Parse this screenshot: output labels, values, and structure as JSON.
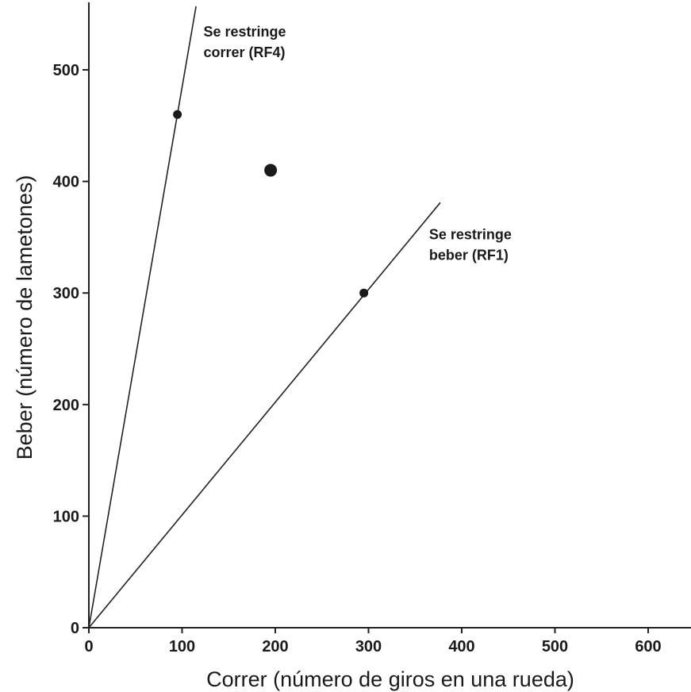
{
  "chart_data": {
    "type": "scatter",
    "title": "",
    "xlabel": "Correr (número de giros en una rueda)",
    "ylabel": "Beber (número de lametones)",
    "xlim": [
      0,
      640
    ],
    "ylim": [
      0,
      560
    ],
    "x_ticks": [
      0,
      100,
      200,
      300,
      400,
      500,
      600
    ],
    "y_ticks": [
      0,
      100,
      200,
      300,
      400,
      500
    ],
    "grid": false,
    "points": [
      {
        "x": 95,
        "y": 460,
        "emphasis": "normal"
      },
      {
        "x": 195,
        "y": 410,
        "emphasis": "large"
      },
      {
        "x": 295,
        "y": 300,
        "emphasis": "normal"
      }
    ],
    "lines": [
      {
        "from": [
          0,
          0
        ],
        "to": [
          115,
          557
        ]
      },
      {
        "from": [
          0,
          0
        ],
        "to": [
          377,
          381
        ]
      }
    ],
    "annotations": [
      {
        "lines": [
          "Se restringe",
          "correr (RF4)"
        ],
        "x": 123,
        "y": 530
      },
      {
        "lines": [
          "Se restringe",
          "beber (RF1)"
        ],
        "x": 365,
        "y": 348
      }
    ]
  }
}
